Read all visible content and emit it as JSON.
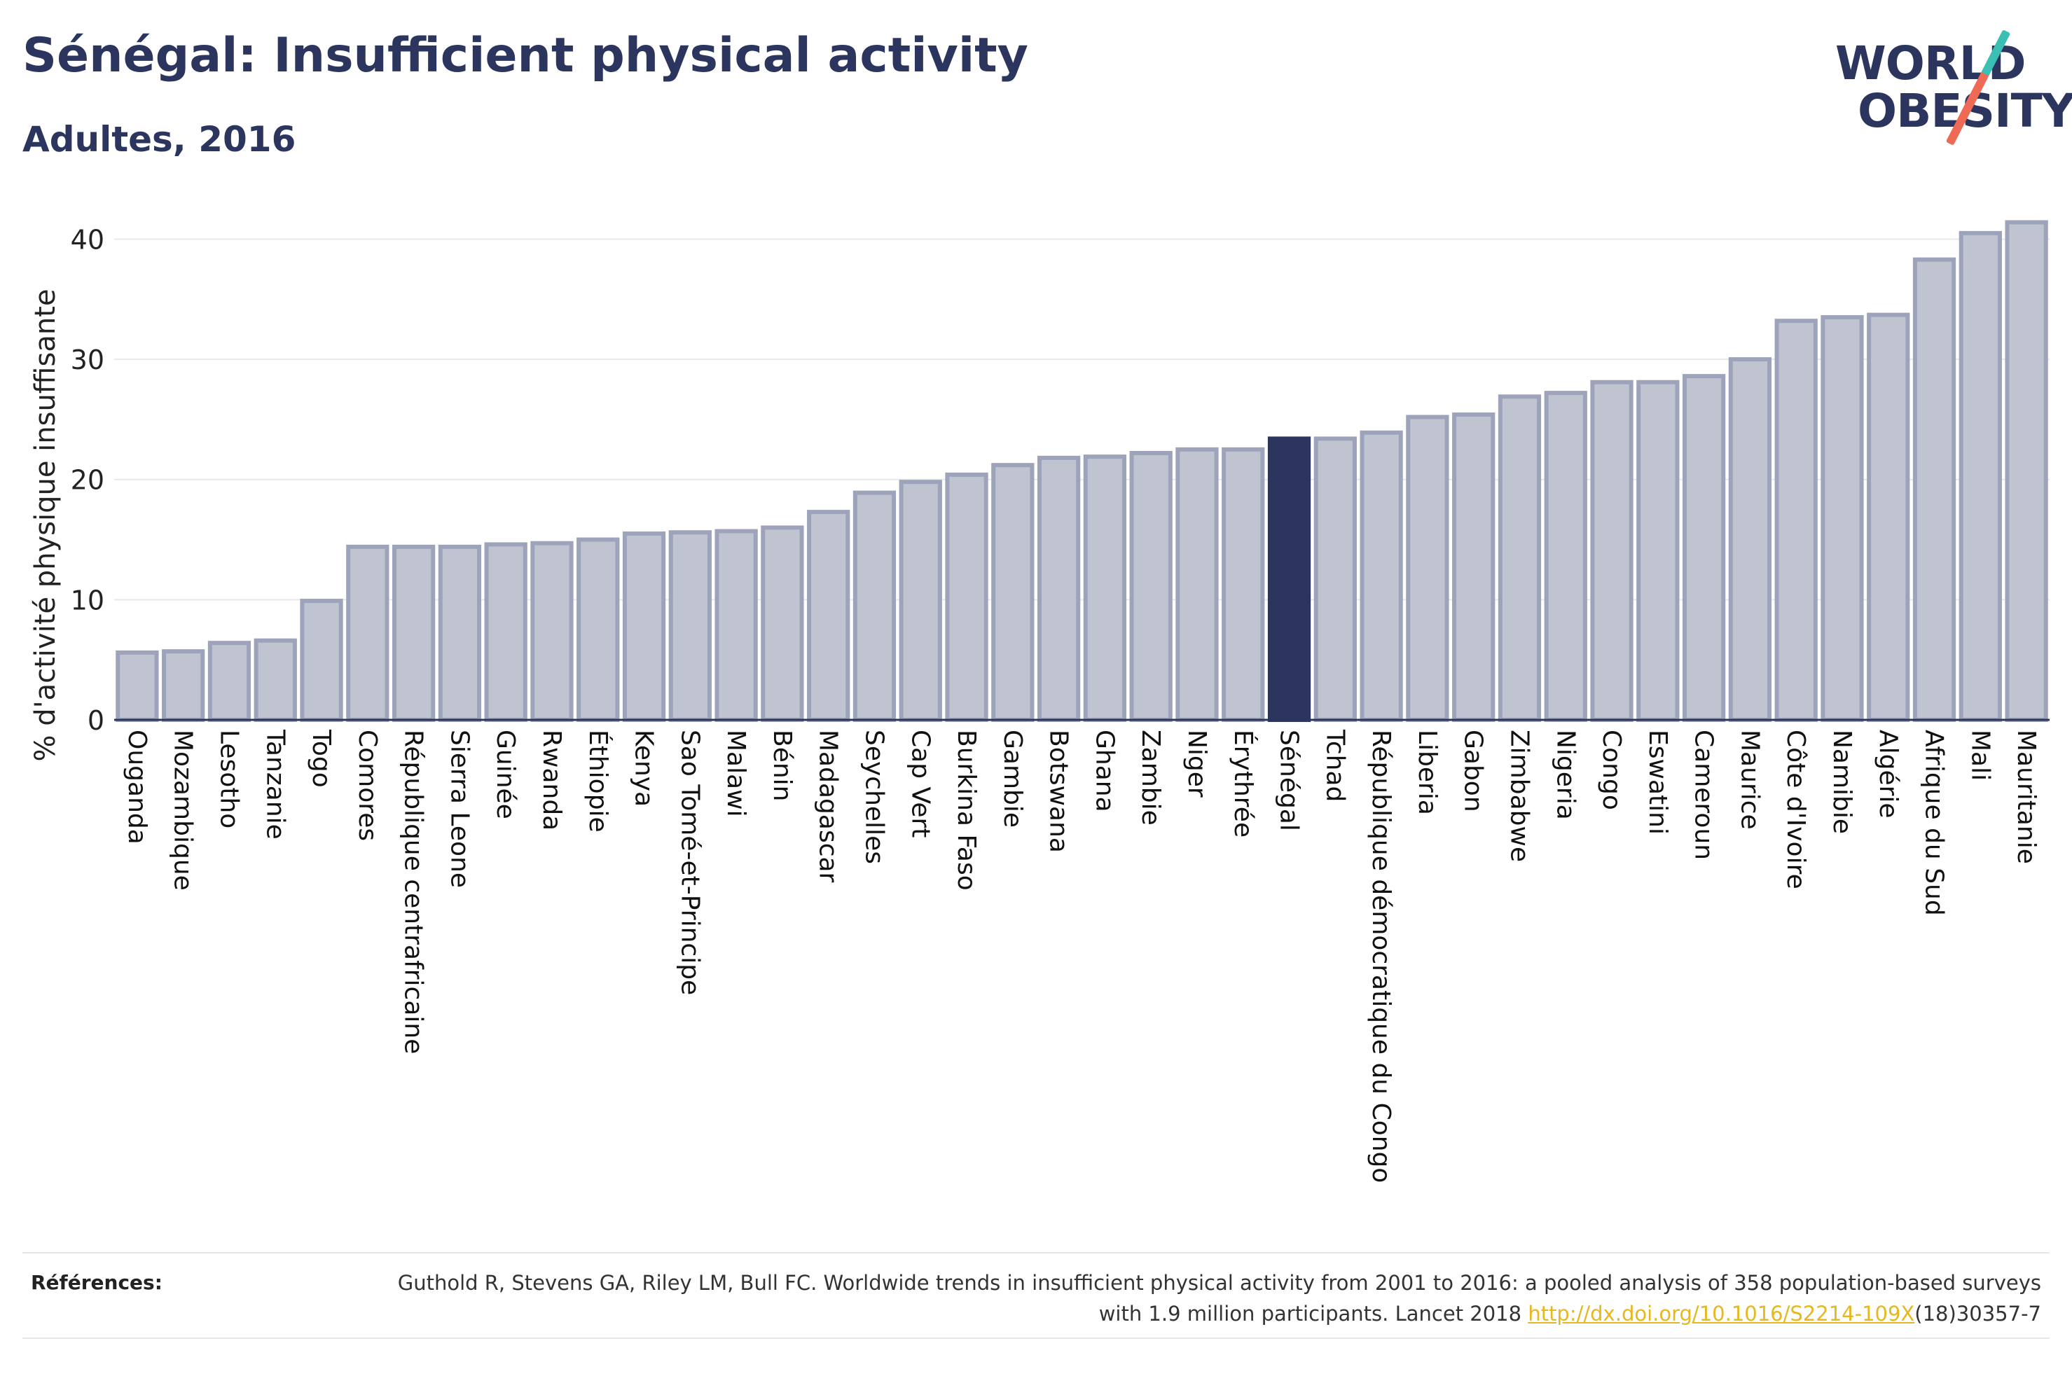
{
  "header": {
    "title": "Sénégal: Insufficient physical activity",
    "subtitle": "Adultes, 2016"
  },
  "logo": {
    "line1": "WORLD",
    "line2": "OBESITY",
    "colors": {
      "text": "#2b355e",
      "slash_top": "#3bbfb4",
      "slash_bottom": "#ee6a55"
    }
  },
  "colors": {
    "bar": "#c0c4d1",
    "bar_border": "#9da3ba",
    "highlight": "#2b355e",
    "axis": "#2b355e",
    "grid": "#e8e8e8"
  },
  "chart_data": {
    "type": "bar",
    "title": "",
    "xlabel": "",
    "ylabel": "% d'activité physique insuffisante",
    "ylim": [
      0,
      43
    ],
    "yticks": [
      0,
      10,
      20,
      30,
      40
    ],
    "grid": true,
    "highlight": "Sénégal",
    "categories": [
      "Ouganda",
      "Mozambique",
      "Lesotho",
      "Tanzanie",
      "Togo",
      "Comores",
      "République centrafricaine",
      "Sierra Leone",
      "Guinée",
      "Rwanda",
      "Éthiopie",
      "Kenya",
      "Sao Tomé-et-Principe",
      "Malawi",
      "Bénin",
      "Madagascar",
      "Seychelles",
      "Cap Vert",
      "Burkina Faso",
      "Gambie",
      "Botswana",
      "Ghana",
      "Zambie",
      "Niger",
      "Érythrée",
      "Sénégal",
      "Tchad",
      "République démocratique du Congo",
      "Liberia",
      "Gabon",
      "Zimbabwe",
      "Nigeria",
      "Congo",
      "Eswatini",
      "Cameroun",
      "Maurice",
      "Côte d'Ivoire",
      "Namibie",
      "Algérie",
      "Afrique du Sud",
      "Mali",
      "Mauritanie"
    ],
    "values": [
      5.6,
      5.7,
      6.4,
      6.6,
      9.9,
      14.4,
      14.4,
      14.4,
      14.6,
      14.7,
      15.0,
      15.5,
      15.6,
      15.7,
      16.0,
      17.3,
      18.9,
      19.8,
      20.4,
      21.2,
      21.8,
      21.9,
      22.2,
      22.5,
      22.5,
      23.4,
      23.4,
      23.9,
      25.2,
      25.4,
      26.9,
      27.2,
      28.1,
      28.1,
      28.6,
      30.0,
      33.2,
      33.5,
      33.7,
      38.3,
      40.5,
      41.4
    ]
  },
  "references": {
    "label": "Références:",
    "text": "Guthold R, Stevens GA, Riley LM, Bull FC. Worldwide trends in insufficient physical activity from 2001 to 2016: a pooled analysis of 358 population-based surveys with 1.9 million participants. Lancet 2018 ",
    "link": "http://dx.doi.org/10.1016/S2214-109X",
    "suffix": "(18)30357-7"
  }
}
